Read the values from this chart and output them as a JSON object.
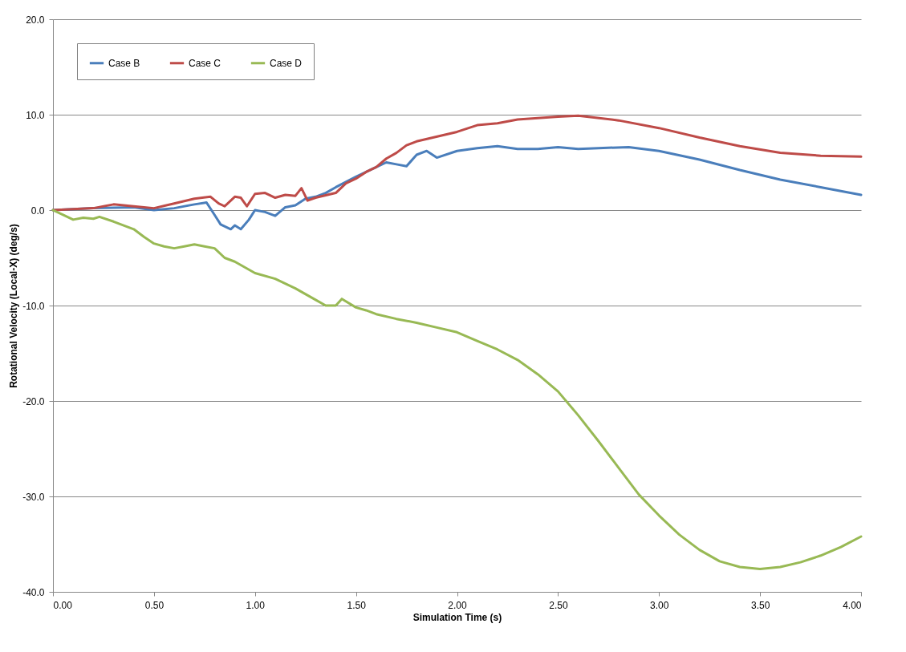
{
  "chart_data": {
    "type": "line",
    "xlabel": "Simulation Time (s)",
    "ylabel": "Rotational Velocity (Local-X) (deg/s)",
    "xlim": [
      0,
      4
    ],
    "ylim": [
      -40,
      20
    ],
    "xticks": [
      {
        "value": 0,
        "label": "0.00"
      },
      {
        "value": 0.5,
        "label": "0.50"
      },
      {
        "value": 1,
        "label": "1.00"
      },
      {
        "value": 1.5,
        "label": "1.50"
      },
      {
        "value": 2,
        "label": "2.00"
      },
      {
        "value": 2.5,
        "label": "2.50"
      },
      {
        "value": 3,
        "label": "3.00"
      },
      {
        "value": 3.5,
        "label": "3.50"
      },
      {
        "value": 4,
        "label": "4.00"
      }
    ],
    "yticks": [
      {
        "value": -40,
        "label": "-40.0"
      },
      {
        "value": -30,
        "label": "-30.0"
      },
      {
        "value": -20,
        "label": "-20.0"
      },
      {
        "value": -10,
        "label": "-10.0"
      },
      {
        "value": 0,
        "label": "0.0"
      },
      {
        "value": 10,
        "label": "10.0"
      },
      {
        "value": 20,
        "label": "20.0"
      }
    ],
    "grid": "y",
    "legend": "top left",
    "marker": "none",
    "line_style": "solid",
    "series": [
      {
        "name": "Case B",
        "color": "#4a7ebb",
        "x": [
          0,
          0.2,
          0.4,
          0.5,
          0.6,
          0.7,
          0.76,
          0.8,
          0.83,
          0.88,
          0.9,
          0.93,
          0.97,
          1.0,
          1.05,
          1.1,
          1.15,
          1.2,
          1.25,
          1.3,
          1.35,
          1.4,
          1.5,
          1.55,
          1.6,
          1.65,
          1.7,
          1.75,
          1.8,
          1.85,
          1.9,
          2.0,
          2.1,
          2.2,
          2.3,
          2.4,
          2.5,
          2.6,
          2.7,
          2.85,
          3.0,
          3.2,
          3.4,
          3.6,
          3.8,
          4.0
        ],
        "values": [
          0,
          0.2,
          0.3,
          0.0,
          0.2,
          0.6,
          0.8,
          -0.5,
          -1.5,
          -2.0,
          -1.6,
          -2.0,
          -1.0,
          0.0,
          -0.2,
          -0.6,
          0.3,
          0.5,
          1.2,
          1.4,
          1.8,
          2.4,
          3.5,
          4.0,
          4.5,
          5.0,
          4.8,
          4.6,
          5.8,
          6.2,
          5.5,
          6.2,
          6.5,
          6.7,
          6.4,
          6.4,
          6.6,
          6.4,
          6.5,
          6.6,
          6.2,
          5.3,
          4.2,
          3.2,
          2.4,
          1.6
        ]
      },
      {
        "name": "Case C",
        "color": "#be4b48",
        "x": [
          0,
          0.2,
          0.3,
          0.4,
          0.5,
          0.6,
          0.7,
          0.78,
          0.82,
          0.85,
          0.9,
          0.93,
          0.96,
          1.0,
          1.05,
          1.1,
          1.15,
          1.2,
          1.23,
          1.26,
          1.3,
          1.4,
          1.45,
          1.5,
          1.55,
          1.6,
          1.65,
          1.7,
          1.75,
          1.8,
          2.0,
          2.1,
          2.2,
          2.3,
          2.5,
          2.6,
          2.8,
          3.0,
          3.2,
          3.4,
          3.6,
          3.8,
          4.0
        ],
        "values": [
          0,
          0.2,
          0.6,
          0.4,
          0.2,
          0.7,
          1.2,
          1.4,
          0.7,
          0.4,
          1.4,
          1.3,
          0.4,
          1.7,
          1.8,
          1.3,
          1.6,
          1.5,
          2.3,
          1.0,
          1.3,
          1.8,
          2.8,
          3.3,
          4.0,
          4.5,
          5.4,
          6.0,
          6.8,
          7.2,
          8.2,
          8.9,
          9.1,
          9.5,
          9.8,
          9.9,
          9.4,
          8.6,
          7.6,
          6.7,
          6.0,
          5.7,
          5.6
        ]
      },
      {
        "name": "Case D",
        "color": "#98b954",
        "x": [
          0,
          0.05,
          0.1,
          0.15,
          0.2,
          0.23,
          0.3,
          0.4,
          0.45,
          0.5,
          0.55,
          0.6,
          0.65,
          0.7,
          0.75,
          0.8,
          0.85,
          0.9,
          1.0,
          1.1,
          1.2,
          1.3,
          1.35,
          1.4,
          1.43,
          1.5,
          1.55,
          1.6,
          1.7,
          1.8,
          1.9,
          2.0,
          2.1,
          2.2,
          2.3,
          2.4,
          2.5,
          2.6,
          2.7,
          2.8,
          2.9,
          3.0,
          3.1,
          3.2,
          3.3,
          3.4,
          3.5,
          3.6,
          3.7,
          3.8,
          3.9,
          4.0
        ],
        "values": [
          0,
          -0.5,
          -1.0,
          -0.8,
          -0.9,
          -0.7,
          -1.2,
          -2.0,
          -2.8,
          -3.5,
          -3.8,
          -4.0,
          -3.8,
          -3.6,
          -3.8,
          -4.0,
          -5.0,
          -5.4,
          -6.6,
          -7.2,
          -8.2,
          -9.4,
          -10.0,
          -10.0,
          -9.3,
          -10.2,
          -10.5,
          -10.9,
          -11.4,
          -11.8,
          -12.3,
          -12.8,
          -13.7,
          -14.6,
          -15.7,
          -17.2,
          -19.0,
          -21.5,
          -24.2,
          -27.0,
          -29.8,
          -32.0,
          -34.0,
          -35.6,
          -36.8,
          -37.4,
          -37.6,
          -37.4,
          -36.9,
          -36.2,
          -35.3,
          -34.2
        ]
      }
    ]
  }
}
